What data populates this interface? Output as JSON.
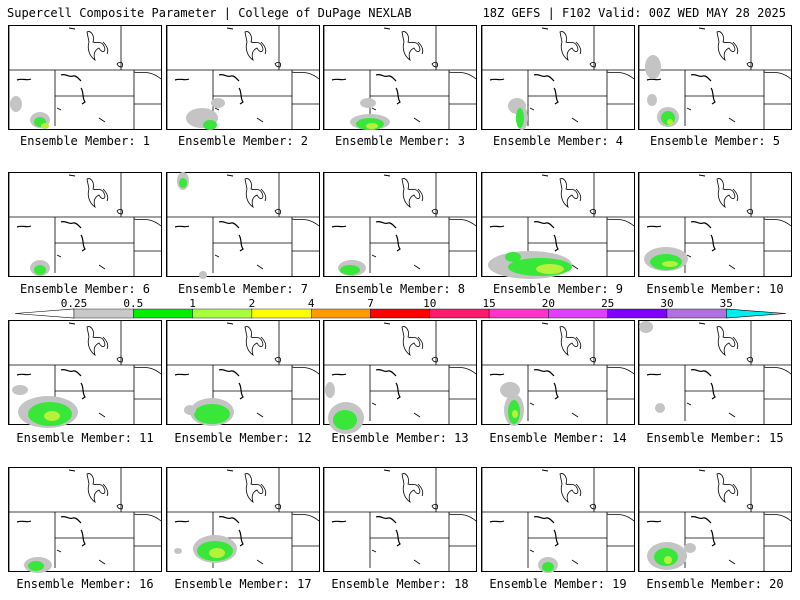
{
  "header": {
    "left": "Supercell Composite Parameter | College of DuPage NEXLAB",
    "right": "18Z GEFS | F102 Valid: 00Z WED MAY 28 2025"
  },
  "member_label_prefix": "Ensemble Member: ",
  "members": [
    {
      "id": "1",
      "blobs": [
        [
          16,
          104,
          6,
          8,
          "gray"
        ],
        [
          40,
          120,
          10,
          8,
          "gray"
        ],
        [
          40,
          122,
          6,
          5,
          "green"
        ],
        [
          45,
          126,
          4,
          3,
          "lgreen"
        ]
      ]
    },
    {
      "id": "2",
      "blobs": [
        [
          218,
          103,
          7,
          5,
          "gray"
        ],
        [
          202,
          118,
          16,
          10,
          "gray"
        ],
        [
          210,
          125,
          7,
          5,
          "green"
        ]
      ]
    },
    {
      "id": "3",
      "blobs": [
        [
          368,
          103,
          8,
          5,
          "gray"
        ],
        [
          370,
          122,
          20,
          8,
          "gray"
        ],
        [
          370,
          124,
          14,
          6,
          "green"
        ],
        [
          372,
          126,
          6,
          3,
          "lgreen"
        ]
      ]
    },
    {
      "id": "4",
      "blobs": [
        [
          517,
          106,
          9,
          8,
          "gray"
        ],
        [
          522,
          118,
          6,
          12,
          "gray"
        ],
        [
          520,
          118,
          4,
          10,
          "green"
        ]
      ]
    },
    {
      "id": "5",
      "blobs": [
        [
          653,
          67,
          8,
          12,
          "gray"
        ],
        [
          652,
          100,
          5,
          6,
          "gray"
        ],
        [
          668,
          117,
          11,
          10,
          "gray"
        ],
        [
          668,
          118,
          7,
          7,
          "green"
        ],
        [
          670,
          122,
          3,
          3,
          "lgreen"
        ]
      ]
    },
    {
      "id": "6",
      "blobs": [
        [
          40,
          268,
          10,
          8,
          "gray"
        ],
        [
          40,
          270,
          6,
          5,
          "green"
        ]
      ]
    },
    {
      "id": "7",
      "blobs": [
        [
          183,
          181,
          6,
          9,
          "gray"
        ],
        [
          183,
          183,
          4,
          5,
          "green"
        ],
        [
          203,
          275,
          4,
          4,
          "gray"
        ]
      ]
    },
    {
      "id": "8",
      "blobs": [
        [
          352,
          268,
          14,
          8,
          "gray"
        ],
        [
          350,
          270,
          10,
          5,
          "green"
        ]
      ]
    },
    {
      "id": "9",
      "blobs": [
        [
          530,
          265,
          42,
          14,
          "gray"
        ],
        [
          540,
          267,
          32,
          9,
          "green"
        ],
        [
          550,
          269,
          14,
          5,
          "lgreen"
        ],
        [
          513,
          257,
          8,
          5,
          "green"
        ]
      ]
    },
    {
      "id": "10",
      "blobs": [
        [
          666,
          259,
          22,
          12,
          "gray"
        ],
        [
          666,
          262,
          16,
          8,
          "green"
        ],
        [
          670,
          264,
          8,
          3,
          "lgreen"
        ]
      ]
    },
    {
      "id": "11",
      "blobs": [
        [
          20,
          390,
          8,
          5,
          "gray"
        ],
        [
          48,
          412,
          30,
          16,
          "gray"
        ],
        [
          50,
          414,
          22,
          12,
          "green"
        ],
        [
          52,
          416,
          8,
          5,
          "lgreen"
        ]
      ]
    },
    {
      "id": "12",
      "blobs": [
        [
          212,
          412,
          22,
          14,
          "gray"
        ],
        [
          212,
          414,
          18,
          10,
          "green"
        ],
        [
          190,
          410,
          6,
          5,
          "gray"
        ]
      ]
    },
    {
      "id": "13",
      "blobs": [
        [
          330,
          390,
          5,
          8,
          "gray"
        ],
        [
          346,
          418,
          18,
          16,
          "gray"
        ],
        [
          345,
          420,
          12,
          10,
          "green"
        ]
      ]
    },
    {
      "id": "14",
      "blobs": [
        [
          510,
          390,
          10,
          8,
          "gray"
        ],
        [
          514,
          410,
          10,
          16,
          "gray"
        ],
        [
          514,
          412,
          6,
          12,
          "green"
        ],
        [
          515,
          414,
          3,
          4,
          "lgreen"
        ]
      ]
    },
    {
      "id": "15",
      "blobs": [
        [
          646,
          327,
          7,
          6,
          "gray"
        ],
        [
          660,
          408,
          5,
          5,
          "gray"
        ]
      ]
    },
    {
      "id": "16",
      "blobs": [
        [
          38,
          565,
          14,
          8,
          "gray"
        ],
        [
          36,
          566,
          8,
          5,
          "green"
        ]
      ]
    },
    {
      "id": "17",
      "blobs": [
        [
          215,
          549,
          22,
          14,
          "gray"
        ],
        [
          215,
          551,
          18,
          10,
          "green"
        ],
        [
          217,
          553,
          8,
          5,
          "lgreen"
        ],
        [
          178,
          551,
          4,
          3,
          "gray"
        ]
      ]
    },
    {
      "id": "18",
      "blobs": []
    },
    {
      "id": "19",
      "blobs": [
        [
          548,
          565,
          10,
          8,
          "gray"
        ],
        [
          548,
          567,
          6,
          5,
          "green"
        ]
      ]
    },
    {
      "id": "20",
      "blobs": [
        [
          667,
          556,
          20,
          14,
          "gray"
        ],
        [
          666,
          557,
          12,
          9,
          "green"
        ],
        [
          668,
          560,
          4,
          4,
          "lgreen"
        ],
        [
          690,
          548,
          6,
          5,
          "gray"
        ]
      ]
    }
  ],
  "legend": {
    "ticks": [
      "0.25",
      "0.5",
      "1",
      "2",
      "4",
      "7",
      "10",
      "15",
      "20",
      "25",
      "30",
      "35"
    ],
    "colors": [
      "#c8c8c8",
      "#00ee00",
      "#a8ff3c",
      "#ffff00",
      "#ff9a00",
      "#ff0000",
      "#ff1a6e",
      "#ff33cc",
      "#e040fb",
      "#8000ff",
      "#b070e0",
      "#00eeee"
    ]
  },
  "colors": {
    "gray": "#c4c4c4",
    "green": "#39e63a",
    "lgreen": "#b6f23c"
  }
}
